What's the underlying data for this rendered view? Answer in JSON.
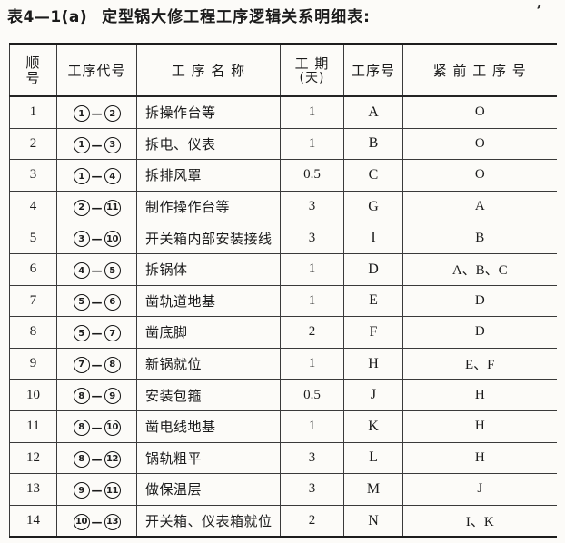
{
  "title": {
    "label": "表4—1(a)",
    "text": "定型锅大修工程工序逻辑关系明细表:",
    "stray_mark": "’"
  },
  "table": {
    "code_dash": "—",
    "headers": {
      "seq_top": "顺",
      "seq_bottom": "号",
      "code": "工序代号",
      "name": "工 序 名 称",
      "duration_top": "工 期",
      "duration_bottom": "(天)",
      "proc": "工序号",
      "pred": "紧 前 工 序 号"
    },
    "rows": [
      {
        "seq": "1",
        "code_from": "1",
        "code_to": "2",
        "name": "拆操作台等",
        "duration": "1",
        "proc": "A",
        "pred": "O"
      },
      {
        "seq": "2",
        "code_from": "1",
        "code_to": "3",
        "name": "拆电、仪表",
        "duration": "1",
        "proc": "B",
        "pred": "O"
      },
      {
        "seq": "3",
        "code_from": "1",
        "code_to": "4",
        "name": "拆排风罩",
        "duration": "0.5",
        "proc": "C",
        "pred": "O"
      },
      {
        "seq": "4",
        "code_from": "2",
        "code_to": "11",
        "name": "制作操作台等",
        "duration": "3",
        "proc": "G",
        "pred": "A"
      },
      {
        "seq": "5",
        "code_from": "3",
        "code_to": "10",
        "name": "开关箱内部安装接线",
        "duration": "3",
        "proc": "I",
        "pred": "B"
      },
      {
        "seq": "6",
        "code_from": "4",
        "code_to": "5",
        "name": "拆锅体",
        "duration": "1",
        "proc": "D",
        "pred": "A、B、C"
      },
      {
        "seq": "7",
        "code_from": "5",
        "code_to": "6",
        "name": "凿轨道地基",
        "duration": "1",
        "proc": "E",
        "pred": "D"
      },
      {
        "seq": "8",
        "code_from": "5",
        "code_to": "7",
        "name": "凿底脚",
        "duration": "2",
        "proc": "F",
        "pred": "D"
      },
      {
        "seq": "9",
        "code_from": "7",
        "code_to": "8",
        "name": "新锅就位",
        "duration": "1",
        "proc": "H",
        "pred": "E、F"
      },
      {
        "seq": "10",
        "code_from": "8",
        "code_to": "9",
        "name": "安装包箍",
        "duration": "0.5",
        "proc": "J",
        "pred": "H"
      },
      {
        "seq": "11",
        "code_from": "8",
        "code_to": "10",
        "name": "凿电线地基",
        "duration": "1",
        "proc": "K",
        "pred": "H"
      },
      {
        "seq": "12",
        "code_from": "8",
        "code_to": "12",
        "name": "锅轨粗平",
        "duration": "3",
        "proc": "L",
        "pred": "H"
      },
      {
        "seq": "13",
        "code_from": "9",
        "code_to": "11",
        "name": "做保温层",
        "duration": "3",
        "proc": "M",
        "pred": "J"
      },
      {
        "seq": "14",
        "code_from": "10",
        "code_to": "13",
        "name": "开关箱、仪表箱就位",
        "duration": "2",
        "proc": "N",
        "pred": "I、K"
      }
    ]
  }
}
